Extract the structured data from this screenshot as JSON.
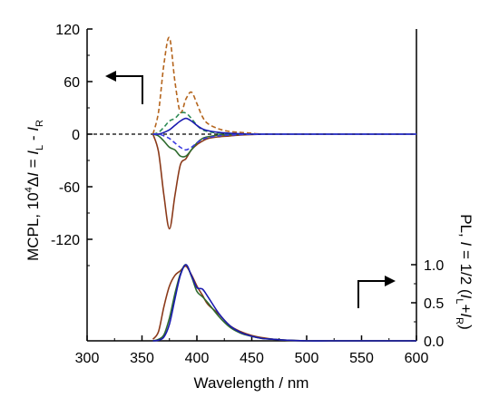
{
  "chart_data": [
    {
      "type": "line",
      "panel": "upper",
      "x": [
        360,
        365,
        370,
        375,
        380,
        385,
        390,
        395,
        400,
        405,
        410,
        420,
        430,
        440,
        450,
        460,
        470,
        480,
        500,
        520,
        550,
        600
      ],
      "series": [
        {
          "role": "brown-solid",
          "color": "#8B3A1A",
          "style": "solid",
          "values": [
            0,
            -20,
            -70,
            -108,
            -70,
            -35,
            -28,
            -18,
            -12,
            -8,
            -5,
            -3,
            -2,
            -1,
            -0.5,
            0,
            0,
            0,
            0,
            0,
            0,
            0
          ]
        },
        {
          "role": "brown-dashed",
          "color": "#B5651D",
          "style": "dashed",
          "values": [
            0,
            25,
            80,
            110,
            60,
            25,
            40,
            48,
            35,
            20,
            12,
            6,
            3,
            2,
            1,
            0,
            0,
            0,
            0,
            0,
            0,
            0
          ]
        },
        {
          "role": "green-solid",
          "color": "#2E6B2E",
          "style": "solid",
          "values": [
            0,
            -2,
            -8,
            -15,
            -18,
            -25,
            -25,
            -18,
            -10,
            -5,
            -3,
            -1,
            -0.5,
            0,
            0,
            0,
            0,
            0,
            0,
            0,
            0,
            0
          ]
        },
        {
          "role": "green-dashed",
          "color": "#2E8B57",
          "style": "dashed",
          "values": [
            0,
            2,
            8,
            15,
            18,
            24,
            24,
            18,
            10,
            5,
            3,
            1,
            0.5,
            0,
            0,
            0,
            0,
            0,
            0,
            0,
            0,
            0
          ]
        },
        {
          "role": "blue-solid",
          "color": "#1A1AB0",
          "style": "solid",
          "values": [
            0,
            0,
            2,
            5,
            10,
            15,
            18,
            15,
            10,
            6,
            4,
            2,
            1,
            0.5,
            0,
            0,
            0,
            0,
            0,
            0,
            0,
            0
          ]
        },
        {
          "role": "blue-dashed",
          "color": "#3A3AE0",
          "style": "dashed",
          "values": [
            0,
            0,
            -2,
            -5,
            -10,
            -15,
            -18,
            -15,
            -10,
            -6,
            -4,
            -2,
            -1,
            -0.5,
            0,
            0,
            0,
            0,
            0,
            0,
            0,
            0
          ]
        }
      ],
      "ylabel_parts": [
        "MCPL, 10",
        "4",
        "Δ",
        "I",
        " = ",
        "I",
        "L",
        " - ",
        "I",
        "R"
      ],
      "ylim": [
        -160,
        120
      ],
      "yticks": [
        "120",
        "60",
        "0",
        "-60",
        "-120"
      ],
      "ytick_values": [
        120,
        60,
        0,
        -60,
        -120
      ],
      "xlim": [
        300,
        600
      ]
    },
    {
      "type": "line",
      "panel": "lower",
      "x": [
        360,
        365,
        370,
        375,
        380,
        385,
        390,
        395,
        400,
        405,
        410,
        420,
        430,
        440,
        450,
        460,
        470,
        480,
        500,
        520,
        550,
        600
      ],
      "series": [
        {
          "role": "brown",
          "color": "#8B3A1A",
          "values": [
            0.02,
            0.12,
            0.45,
            0.72,
            0.86,
            0.92,
            0.98,
            0.87,
            0.72,
            0.6,
            0.48,
            0.35,
            0.2,
            0.12,
            0.07,
            0.04,
            0.02,
            0.01,
            0,
            0,
            0,
            0
          ]
        },
        {
          "role": "green",
          "color": "#2E6B2E",
          "values": [
            0,
            0.02,
            0.08,
            0.3,
            0.62,
            0.88,
            1.0,
            0.85,
            0.65,
            0.58,
            0.5,
            0.32,
            0.18,
            0.1,
            0.06,
            0.03,
            0.02,
            0.01,
            0,
            0,
            0,
            0
          ]
        },
        {
          "role": "blue",
          "color": "#1A1AB0",
          "values": [
            0,
            0.01,
            0.05,
            0.22,
            0.55,
            0.86,
            1.0,
            0.86,
            0.7,
            0.68,
            0.58,
            0.36,
            0.2,
            0.11,
            0.06,
            0.03,
            0.02,
            0.01,
            0,
            0,
            0,
            0
          ]
        }
      ],
      "ylabel_parts": [
        "PL, ",
        "I",
        " = 1/2 (",
        "I",
        "L",
        "+",
        "I",
        "R",
        ")"
      ],
      "ylim": [
        0,
        1.2
      ],
      "yticks": [
        "1.0",
        "0.5",
        "0.0"
      ],
      "ytick_values": [
        1.0,
        0.5,
        0.0
      ],
      "xlim": [
        300,
        600
      ]
    }
  ],
  "x_axis": {
    "label": "Wavelength / nm",
    "ticks": [
      "300",
      "350",
      "400",
      "450",
      "500",
      "550",
      "600"
    ],
    "tick_values": [
      300,
      350,
      400,
      450,
      500,
      550,
      600
    ]
  },
  "colors": {
    "axis": "#000000",
    "zero_line": "#000000"
  },
  "annotations": {
    "left_arrow": "arrow pointing left toward MCPL axis",
    "right_arrow": "arrow pointing right toward PL axis"
  }
}
